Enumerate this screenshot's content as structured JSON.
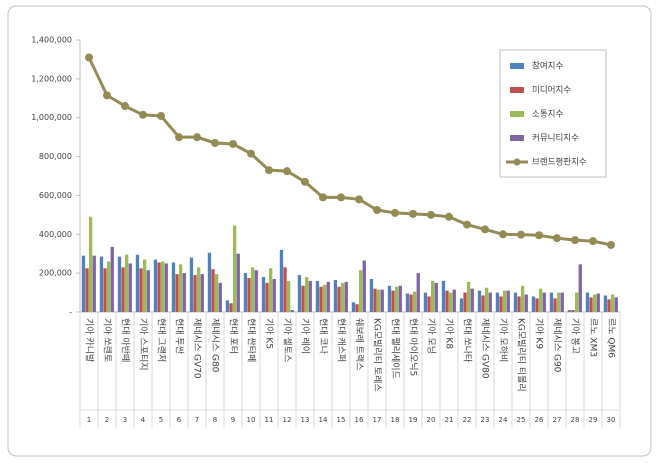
{
  "chart_data": {
    "type": "bar",
    "categories": [
      "기아 카니발",
      "기아 쏘렌토",
      "현대 아반떼",
      "기아 스포티지",
      "현대 그랜저",
      "현대 투싼",
      "제네시스 GV70",
      "제네시스 G80",
      "현대 포터",
      "현대 싼타페",
      "기아 K5",
      "기아 셀토스",
      "기아 레이",
      "현대 코나",
      "현대 캐스퍼",
      "쉐보레 트랙스",
      "KG모빌리티 토레스",
      "현대 팰리세이드",
      "현대 아이오닉5",
      "기아 모닝",
      "기아 K8",
      "현대 쏘나타",
      "제네시스 GV80",
      "기아 모하비",
      "KG모빌리티 티볼리",
      "기아 K9",
      "제네시스 G90",
      "기아 봉고",
      "르노 XM3",
      "르노 QM6"
    ],
    "ranks": [
      1,
      2,
      3,
      4,
      5,
      6,
      7,
      8,
      9,
      10,
      11,
      12,
      13,
      14,
      15,
      16,
      17,
      18,
      19,
      20,
      21,
      22,
      23,
      24,
      25,
      26,
      27,
      28,
      29,
      30
    ],
    "series": [
      {
        "name": "참여지수",
        "type": "bar",
        "color": "#4f81bd",
        "values": [
          290000,
          285000,
          285000,
          295000,
          270000,
          255000,
          280000,
          305000,
          60000,
          200000,
          180000,
          320000,
          190000,
          160000,
          165000,
          50000,
          170000,
          135000,
          95000,
          100000,
          160000,
          70000,
          110000,
          100000,
          100000,
          80000,
          100000,
          10000,
          100000,
          85000
        ]
      },
      {
        "name": "미디어지수",
        "type": "bar",
        "color": "#c0504d",
        "values": [
          225000,
          225000,
          230000,
          225000,
          255000,
          195000,
          190000,
          220000,
          45000,
          175000,
          150000,
          230000,
          135000,
          130000,
          130000,
          40000,
          120000,
          110000,
          90000,
          80000,
          110000,
          100000,
          85000,
          80000,
          80000,
          70000,
          70000,
          10000,
          75000,
          65000
        ]
      },
      {
        "name": "소통지수",
        "type": "bar",
        "color": "#9bbb59",
        "values": [
          490000,
          260000,
          295000,
          270000,
          260000,
          245000,
          230000,
          195000,
          445000,
          230000,
          225000,
          160000,
          180000,
          140000,
          150000,
          215000,
          115000,
          130000,
          105000,
          160000,
          100000,
          155000,
          125000,
          110000,
          135000,
          120000,
          100000,
          100000,
          90000,
          90000
        ]
      },
      {
        "name": "커뮤니티지수",
        "type": "bar",
        "color": "#8064a2",
        "values": [
          290000,
          335000,
          250000,
          215000,
          250000,
          200000,
          195000,
          150000,
          300000,
          215000,
          170000,
          10000,
          160000,
          155000,
          155000,
          265000,
          115000,
          135000,
          200000,
          150000,
          115000,
          120000,
          100000,
          110000,
          90000,
          100000,
          100000,
          245000,
          95000,
          75000
        ]
      },
      {
        "name": "브랜드평판지수",
        "type": "line",
        "color": "#948a54",
        "values": [
          1310000,
          1115000,
          1060000,
          1015000,
          1009000,
          900000,
          900000,
          870000,
          865000,
          815000,
          730000,
          725000,
          670000,
          590000,
          590000,
          580000,
          525000,
          510000,
          505000,
          500000,
          490000,
          450000,
          425000,
          400000,
          398000,
          395000,
          380000,
          370000,
          365000,
          345000
        ]
      }
    ],
    "ylim": [
      0,
      1400000
    ],
    "yticks": [
      {
        "value": 0,
        "label": "-"
      },
      {
        "value": 200000,
        "label": "200,000"
      },
      {
        "value": 400000,
        "label": "400,000"
      },
      {
        "value": 600000,
        "label": "600,000"
      },
      {
        "value": 800000,
        "label": "800,000"
      },
      {
        "value": 1000000,
        "label": "1,000,000"
      },
      {
        "value": 1200000,
        "label": "1,200,000"
      },
      {
        "value": 1400000,
        "label": "1,400,000"
      }
    ],
    "grid": false,
    "legend": "top-right"
  }
}
